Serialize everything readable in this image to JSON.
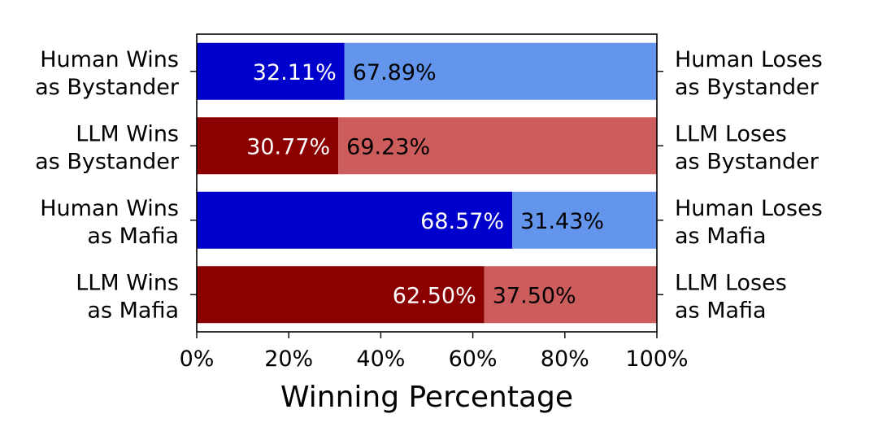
{
  "chart_data": {
    "type": "bar",
    "orientation": "horizontal",
    "stacked": true,
    "xlabel": "Winning Percentage",
    "xlim": [
      0,
      100
    ],
    "xticks": [
      "0%",
      "20%",
      "40%",
      "60%",
      "80%",
      "100%"
    ],
    "grid": false,
    "legend": "none",
    "rows": [
      {
        "left_label": [
          "Human Wins",
          "as Bystander"
        ],
        "right_label": [
          "Human Loses",
          "as Bystander"
        ],
        "win": 32.11,
        "lose": 67.89,
        "win_text": "32.11%",
        "lose_text": "67.89%",
        "win_color": "#0000cd",
        "lose_color": "#6495ed"
      },
      {
        "left_label": [
          "LLM Wins",
          "as Bystander"
        ],
        "right_label": [
          "LLM Loses",
          "as Bystander"
        ],
        "win": 30.77,
        "lose": 69.23,
        "win_text": "30.77%",
        "lose_text": "69.23%",
        "win_color": "#8b0000",
        "lose_color": "#cd5c5c"
      },
      {
        "left_label": [
          "Human Wins",
          "as Mafia"
        ],
        "right_label": [
          "Human Loses",
          "as Mafia"
        ],
        "win": 68.57,
        "lose": 31.43,
        "win_text": "68.57%",
        "lose_text": "31.43%",
        "win_color": "#0000cd",
        "lose_color": "#6495ed"
      },
      {
        "left_label": [
          "LLM Wins",
          "as Mafia"
        ],
        "right_label": [
          "LLM Loses",
          "as Mafia"
        ],
        "win": 62.5,
        "lose": 37.5,
        "win_text": "62.50%",
        "lose_text": "37.50%",
        "win_color": "#8b0000",
        "lose_color": "#cd5c5c"
      }
    ]
  }
}
